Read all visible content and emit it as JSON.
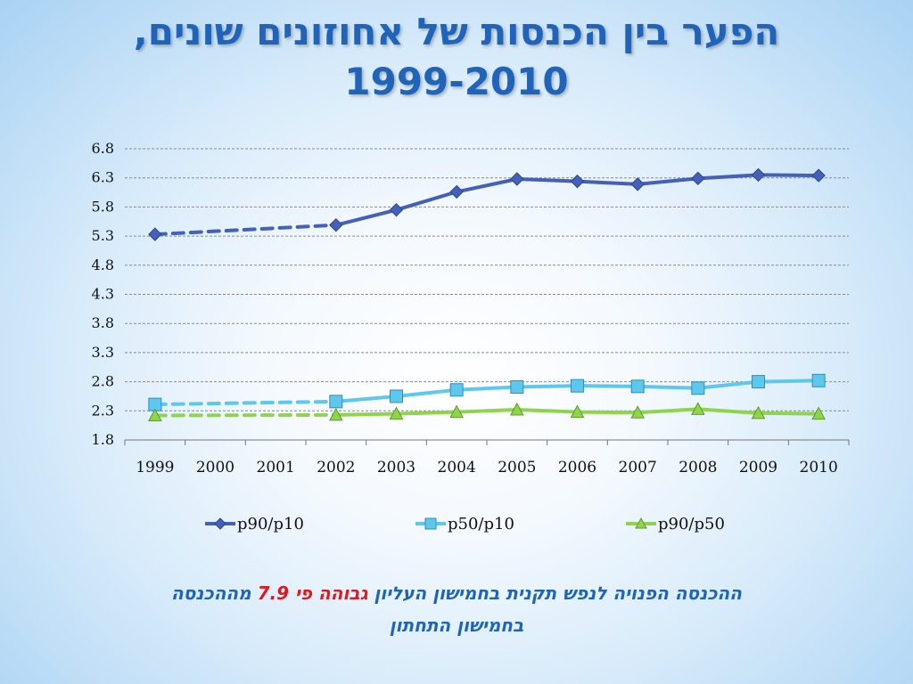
{
  "title_line1": "הפער בין הכנסות של אחוזונים שונים,",
  "title_line2": "1999-2010",
  "chart_data": {
    "type": "line",
    "categories": [
      "1999",
      "2000",
      "2001",
      "2002",
      "2003",
      "2004",
      "2005",
      "2006",
      "2007",
      "2008",
      "2009",
      "2010"
    ],
    "ylim": [
      1.8,
      6.8
    ],
    "yticks": [
      "1.8",
      "2.3",
      "2.8",
      "3.3",
      "3.8",
      "4.3",
      "4.8",
      "5.3",
      "5.8",
      "6.3",
      "6.8"
    ],
    "grid": true,
    "legend_position": "bottom",
    "dashed_segment": "1999-2002",
    "series": [
      {
        "name": "p90/p10",
        "color": "#4560b8",
        "marker": "diamond",
        "values": [
          5.33,
          null,
          null,
          5.49,
          5.75,
          6.06,
          6.28,
          6.24,
          6.19,
          6.29,
          6.35,
          6.34
        ]
      },
      {
        "name": "p50/p10",
        "color": "#5ec7ec",
        "marker": "square",
        "values": [
          2.41,
          null,
          null,
          2.46,
          2.55,
          2.66,
          2.71,
          2.73,
          2.72,
          2.69,
          2.8,
          2.82
        ]
      },
      {
        "name": "p90/p50",
        "color": "#8fd44d",
        "marker": "triangle",
        "values": [
          2.22,
          null,
          null,
          2.23,
          2.25,
          2.28,
          2.32,
          2.28,
          2.27,
          2.33,
          2.26,
          2.25
        ]
      }
    ]
  },
  "caption": {
    "part1": "ההכנסה הפנויה לנפש תקנית בחמישון העליון",
    "highlight": "גבוהה פי",
    "number": "7.9",
    "part2": "מההכנסה",
    "line2": "בחמישון התחתון"
  }
}
